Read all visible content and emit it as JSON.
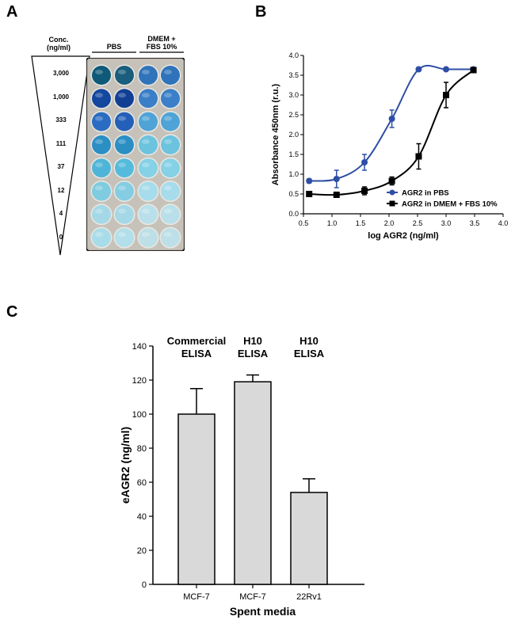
{
  "panels": {
    "a": {
      "letter": "A",
      "conc_label_line1": "Conc.",
      "conc_label_line2": "(ng/ml)",
      "concentrations": [
        "3,000",
        "1,000",
        "333",
        "111",
        "37",
        "12",
        "4",
        "0"
      ],
      "col_header_pbs": "PBS",
      "col_header_dmem_line1": "DMEM +",
      "col_header_dmem_line2": "FBS 10%"
    },
    "b": {
      "letter": "B"
    },
    "c": {
      "letter": "C"
    }
  },
  "plate": {
    "rows": [
      [
        "#0e5a78",
        "#1a5d7c",
        "#2f73ba",
        "#2f73ba"
      ],
      [
        "#14489e",
        "#123f94",
        "#3a7fc7",
        "#3a7fc7"
      ],
      [
        "#2a6cc2",
        "#2460b8",
        "#4fa3d6",
        "#4fa3d6"
      ],
      [
        "#2b8fc4",
        "#2b8fc4",
        "#6cc3de",
        "#6cc3de"
      ],
      [
        "#4fb5d8",
        "#55bbdc",
        "#85d1e6",
        "#85d1e6"
      ],
      [
        "#7fcbe0",
        "#84cde3",
        "#a6dceb",
        "#a6dceb"
      ],
      [
        "#a5d8e6",
        "#a5d8e6",
        "#b9e0ea",
        "#b9e0ea"
      ],
      [
        "#a8dce8",
        "#b2dfea",
        "#bddfe7",
        "#bddfe7"
      ]
    ]
  },
  "chart_data": [
    {
      "type": "line",
      "xlabel": "log AGR2 (ng/ml)",
      "ylabel": "Absorbance 450nm (r.u.)",
      "xlim": [
        0.5,
        4.0
      ],
      "ylim": [
        0.0,
        4.0
      ],
      "xticks": [
        "0.5",
        "1.0",
        "1.5",
        "2.0",
        "2.5",
        "3.0",
        "3.5",
        "4.0"
      ],
      "yticks": [
        "0.0",
        "0.5",
        "1.0",
        "1.5",
        "2.0",
        "2.5",
        "3.0",
        "3.5",
        "4.0"
      ],
      "legend_position": "bottom-right",
      "series": [
        {
          "name": "AGR2 in PBS",
          "color": "#2e4ea6",
          "marker": "circle",
          "x": [
            0.6,
            1.08,
            1.57,
            2.05,
            2.52,
            3.0,
            3.48
          ],
          "y": [
            0.83,
            0.88,
            1.3,
            2.4,
            3.65,
            3.65,
            3.65
          ],
          "err": [
            0.05,
            0.22,
            0.2,
            0.22,
            0.03,
            0.03,
            0.03
          ]
        },
        {
          "name": "AGR2 in DMEM + FBS 10%",
          "color": "#000000",
          "marker": "square",
          "x": [
            0.6,
            1.08,
            1.57,
            2.05,
            2.52,
            3.0,
            3.48
          ],
          "y": [
            0.5,
            0.48,
            0.58,
            0.83,
            1.45,
            3.0,
            3.63
          ],
          "err": [
            0.03,
            0.05,
            0.1,
            0.1,
            0.32,
            0.32,
            0.05
          ]
        }
      ]
    },
    {
      "type": "bar",
      "ylabel": "eAGR2 (ng/ml)",
      "xlabel": "Spent media",
      "categories": [
        "MCF-7",
        "MCF-7",
        "22Rv1"
      ],
      "values": [
        100,
        119,
        54
      ],
      "errors": [
        15,
        4,
        8
      ],
      "annotations": [
        [
          "Commercial",
          "ELISA"
        ],
        [
          "H10",
          "ELISA"
        ],
        [
          "H10",
          "ELISA"
        ]
      ],
      "ylim": [
        0,
        140
      ],
      "yticks": [
        "0",
        "20",
        "40",
        "60",
        "80",
        "100",
        "120",
        "140"
      ],
      "bar_color": "#d9d9d9"
    }
  ]
}
